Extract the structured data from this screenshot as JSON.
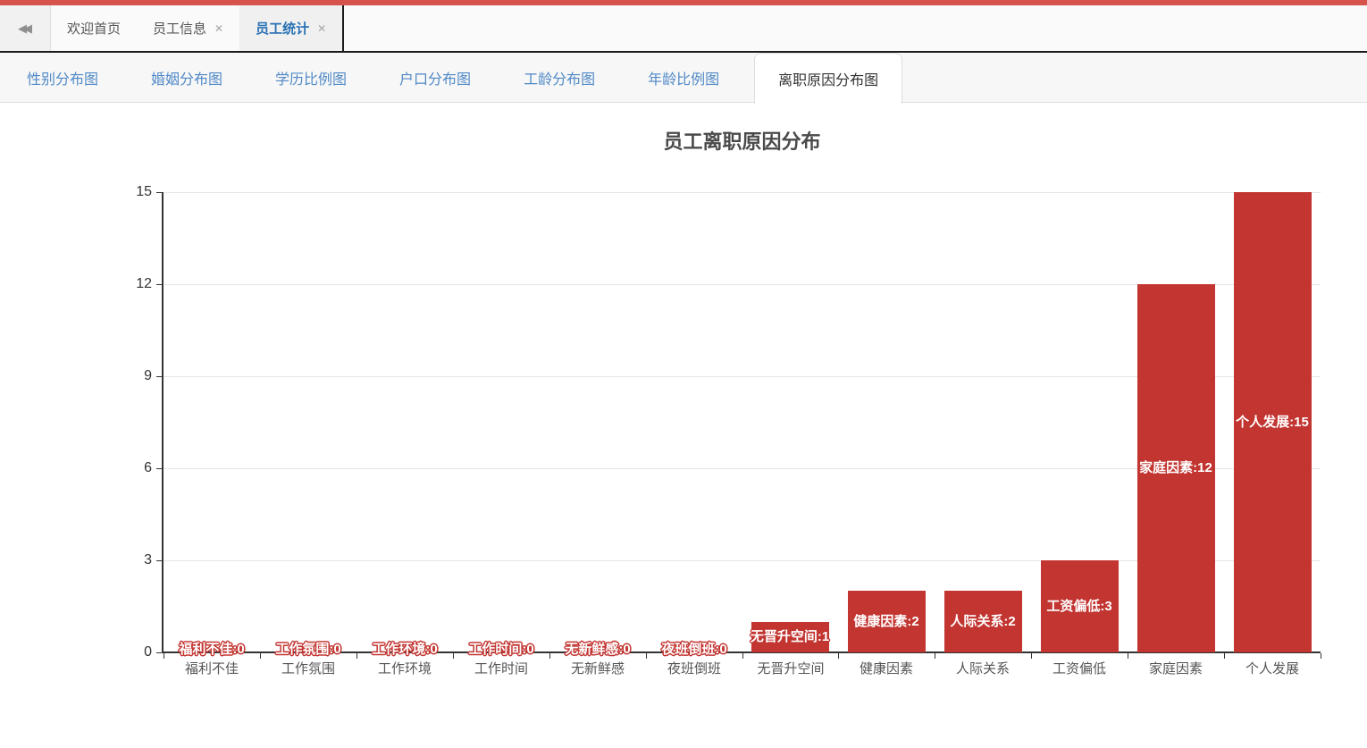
{
  "icons": {
    "collapse_glyph": "◀◀",
    "close_glyph": "✕"
  },
  "window_tabbar": {
    "tabs": [
      {
        "label": "欢迎首页",
        "closable": false,
        "active": false
      },
      {
        "label": "员工信息",
        "closable": true,
        "active": false
      },
      {
        "label": "员工统计",
        "closable": true,
        "active": true
      }
    ]
  },
  "chart_tabs": [
    {
      "label": "性别分布图",
      "active": false
    },
    {
      "label": "婚姻分布图",
      "active": false
    },
    {
      "label": "学历比例图",
      "active": false
    },
    {
      "label": "户口分布图",
      "active": false
    },
    {
      "label": "工龄分布图",
      "active": false
    },
    {
      "label": "年龄比例图",
      "active": false
    },
    {
      "label": "离职原因分布图",
      "active": true
    }
  ],
  "chart_data": {
    "type": "bar",
    "title": "员工离职原因分布",
    "categories": [
      "福利不佳",
      "工作氛围",
      "工作环境",
      "工作时间",
      "无新鲜感",
      "夜班倒班",
      "无晋升空间",
      "健康因素",
      "人际关系",
      "工资偏低",
      "家庭因素",
      "个人发展"
    ],
    "values": [
      0,
      0,
      0,
      0,
      0,
      0,
      1,
      2,
      2,
      3,
      12,
      15
    ],
    "data_labels": [
      "福利不佳:0",
      "工作氛围:0",
      "工作环境:0",
      "工作时间:0",
      "无新鲜感:0",
      "夜班倒班:0",
      "无晋升空间:1",
      "健康因素:2",
      "人际关系:2",
      "工资偏低:3",
      "家庭因素:12",
      "个人发展:15"
    ],
    "xlabel": "",
    "ylabel": "",
    "ylim": [
      0,
      15
    ],
    "yticks": [
      0,
      3,
      6,
      9,
      12,
      15
    ],
    "grid": true,
    "legend": "none",
    "bar_color": "#c23531",
    "label_text_color": "#ffffff"
  },
  "colors": {
    "top_strip": "#d5534a",
    "active_window_tab_text": "#2a72b5",
    "chart_tab_link": "#5089c6",
    "active_chart_tab_text": "#333333",
    "axis": "#333333",
    "grid_line": "#e6e6e6",
    "title_text": "#4a4a4a",
    "bar": "#c23531"
  }
}
